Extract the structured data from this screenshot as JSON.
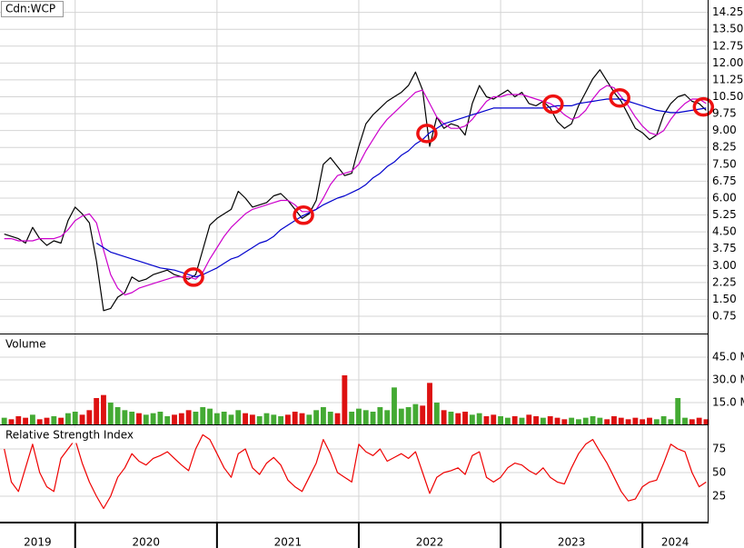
{
  "chart_data": [
    {
      "type": "line",
      "title": "Cdn:WCP",
      "x": [
        2019.5,
        2019.55,
        2019.6,
        2019.65,
        2019.7,
        2019.75,
        2019.8,
        2019.85,
        2019.9,
        2019.95,
        2020,
        2020.05,
        2020.1,
        2020.15,
        2020.2,
        2020.25,
        2020.3,
        2020.35,
        2020.4,
        2020.45,
        2020.5,
        2020.55,
        2020.6,
        2020.65,
        2020.7,
        2020.75,
        2020.8,
        2020.85,
        2020.9,
        2020.95,
        2021,
        2021.05,
        2021.1,
        2021.15,
        2021.2,
        2021.25,
        2021.3,
        2021.35,
        2021.4,
        2021.45,
        2021.5,
        2021.55,
        2021.6,
        2021.65,
        2021.7,
        2021.75,
        2021.8,
        2021.85,
        2021.9,
        2021.95,
        2022,
        2022.05,
        2022.1,
        2022.15,
        2022.2,
        2022.25,
        2022.3,
        2022.35,
        2022.4,
        2022.45,
        2022.5,
        2022.55,
        2022.6,
        2022.65,
        2022.7,
        2022.75,
        2022.8,
        2022.85,
        2022.9,
        2022.95,
        2023,
        2023.05,
        2023.1,
        2023.15,
        2023.2,
        2023.25,
        2023.3,
        2023.35,
        2023.4,
        2023.45,
        2023.5,
        2023.55,
        2023.6,
        2023.65,
        2023.7,
        2023.75,
        2023.8,
        2023.85,
        2023.9,
        2023.95,
        2024,
        2024.05,
        2024.1,
        2024.15,
        2024.2,
        2024.25,
        2024.3,
        2024.35,
        2024.4,
        2024.45
      ],
      "xlim": [
        2019.47,
        2024.46
      ],
      "xticks": [
        2019,
        2020,
        2021,
        2022,
        2023,
        2024
      ],
      "ylim": [
        0,
        14.8
      ],
      "yticks": [
        0.75,
        {
          "value": 1.5,
          "label": "1.50"
        },
        2.25,
        {
          "value": 3,
          "label": "3.00"
        },
        3.75,
        {
          "value": 4.5,
          "label": "4.50"
        },
        5.25,
        {
          "value": 6,
          "label": "6.00"
        },
        6.75,
        {
          "value": 7.5,
          "label": "7.50"
        },
        8.25,
        {
          "value": 9,
          "label": "9.00"
        },
        9.75,
        {
          "value": 10.5,
          "label": "10.50"
        },
        11.25,
        {
          "value": 12,
          "label": "12.00"
        },
        12.75,
        {
          "value": 13.5,
          "label": "13.50"
        },
        14.25
      ],
      "grid": true,
      "series": [
        {
          "color": "#000000",
          "values": [
            4.4,
            4.3,
            4.2,
            4.0,
            4.7,
            4.2,
            3.9,
            4.1,
            4.0,
            5.0,
            5.6,
            5.3,
            4.9,
            3.2,
            1.0,
            1.1,
            1.6,
            1.8,
            2.5,
            2.3,
            2.4,
            2.6,
            2.7,
            2.8,
            2.6,
            2.5,
            2.4,
            2.6,
            3.7,
            4.8,
            5.1,
            5.3,
            5.5,
            6.3,
            6.0,
            5.6,
            5.7,
            5.8,
            6.1,
            6.2,
            5.9,
            5.5,
            5.1,
            5.3,
            5.9,
            7.5,
            7.8,
            7.4,
            7.0,
            7.1,
            8.3,
            9.3,
            9.7,
            10.0,
            10.3,
            10.5,
            10.7,
            11.0,
            11.6,
            10.8,
            8.3,
            9.6,
            9.1,
            9.3,
            9.2,
            8.8,
            10.2,
            11.0,
            10.5,
            10.4,
            10.6,
            10.8,
            10.5,
            10.7,
            10.2,
            10.1,
            10.3,
            10.0,
            9.4,
            9.1,
            9.3,
            10.1,
            10.7,
            11.3,
            11.7,
            11.2,
            10.7,
            10.3,
            9.7,
            9.1,
            8.9,
            8.6,
            8.8,
            9.7,
            10.2,
            10.5,
            10.6,
            10.3,
            10.2,
            9.9
          ]
        },
        {
          "color": "#cc00cc",
          "values": [
            4.2,
            4.2,
            4.1,
            4.1,
            4.1,
            4.2,
            4.2,
            4.2,
            4.3,
            4.6,
            5.0,
            5.2,
            5.3,
            4.9,
            3.7,
            2.6,
            2.0,
            1.7,
            1.8,
            2.0,
            2.1,
            2.2,
            2.3,
            2.4,
            2.5,
            2.5,
            2.5,
            2.4,
            2.7,
            3.3,
            3.8,
            4.3,
            4.7,
            5.0,
            5.3,
            5.5,
            5.6,
            5.7,
            5.8,
            5.9,
            5.9,
            5.7,
            5.4,
            5.4,
            5.5,
            6.0,
            6.6,
            7.0,
            7.1,
            7.2,
            7.5,
            8.1,
            8.6,
            9.1,
            9.5,
            9.8,
            10.1,
            10.4,
            10.7,
            10.8,
            10.2,
            9.6,
            9.3,
            9.1,
            9.1,
            9.2,
            9.5,
            9.9,
            10.3,
            10.5,
            10.5,
            10.6,
            10.6,
            10.6,
            10.5,
            10.4,
            10.3,
            10.2,
            10.0,
            9.7,
            9.5,
            9.6,
            9.9,
            10.4,
            10.8,
            11.0,
            10.9,
            10.5,
            10.1,
            9.6,
            9.2,
            8.9,
            8.8,
            9.0,
            9.5,
            9.9,
            10.2,
            10.4,
            10.4,
            10.2
          ]
        },
        {
          "color": "#0000cc",
          "values": [
            null,
            null,
            null,
            null,
            null,
            null,
            null,
            null,
            null,
            null,
            null,
            null,
            null,
            4.0,
            3.8,
            3.6,
            3.5,
            3.4,
            3.3,
            3.2,
            3.1,
            3.0,
            2.9,
            2.85,
            2.8,
            2.7,
            2.6,
            2.5,
            2.6,
            2.75,
            2.9,
            3.1,
            3.3,
            3.4,
            3.6,
            3.8,
            4.0,
            4.1,
            4.3,
            4.6,
            4.8,
            5.0,
            5.2,
            5.35,
            5.5,
            5.7,
            5.85,
            6.0,
            6.1,
            6.25,
            6.4,
            6.6,
            6.9,
            7.1,
            7.4,
            7.6,
            7.9,
            8.1,
            8.4,
            8.6,
            8.9,
            9.1,
            9.3,
            9.4,
            9.5,
            9.6,
            9.7,
            9.8,
            9.9,
            10.0,
            10.0,
            10.0,
            10.0,
            10.0,
            10.0,
            10.0,
            10.0,
            10.05,
            10.1,
            10.1,
            10.1,
            10.2,
            10.25,
            10.3,
            10.35,
            10.4,
            10.4,
            10.4,
            10.3,
            10.2,
            10.1,
            10.0,
            9.9,
            9.85,
            9.8,
            9.8,
            9.85,
            9.9,
            9.95,
            10.0
          ]
        }
      ],
      "highlights": {
        "color": "#ee1111",
        "x": [
          2020.835,
          2021.61,
          2022.48,
          2023.37,
          2023.84,
          2024.43
        ],
        "y": [
          2.49,
          5.24,
          8.87,
          10.17,
          10.45,
          10.05
        ]
      }
    },
    {
      "type": "bar",
      "title": "Volume",
      "values": [
        5,
        4,
        6,
        5,
        7,
        4,
        5,
        6,
        5,
        8,
        9,
        7,
        10,
        18,
        20,
        15,
        12,
        10,
        9,
        8,
        7,
        8,
        9,
        6,
        7,
        8,
        10,
        9,
        12,
        11,
        8,
        9,
        7,
        10,
        8,
        7,
        6,
        8,
        7,
        6,
        7,
        9,
        8,
        7,
        10,
        12,
        9,
        8,
        33,
        9,
        11,
        10,
        9,
        12,
        10,
        25,
        11,
        12,
        14,
        13,
        28,
        15,
        10,
        9,
        8,
        9,
        7,
        8,
        6,
        7,
        6,
        5,
        6,
        5,
        7,
        6,
        5,
        6,
        5,
        4,
        5,
        4,
        5,
        6,
        5,
        4,
        6,
        5,
        4,
        5,
        4,
        5,
        4,
        6,
        4,
        18,
        5,
        4,
        5,
        4
      ],
      "up_color": "#44aa33",
      "down_color": "#dd1111",
      "ylim": [
        0,
        60
      ],
      "yticks": [
        {
          "value": 15,
          "label": "15.0 M"
        },
        {
          "value": 30,
          "label": "30.0 M"
        },
        {
          "value": 45,
          "label": "45.0 M"
        }
      ],
      "grid": true
    },
    {
      "type": "line",
      "title": "Relative Strength Index",
      "series": [
        {
          "color": "#ee0000",
          "values": [
            75,
            40,
            30,
            55,
            80,
            50,
            35,
            30,
            65,
            75,
            85,
            60,
            40,
            25,
            12,
            25,
            45,
            55,
            70,
            62,
            58,
            65,
            68,
            72,
            65,
            58,
            52,
            75,
            90,
            85,
            70,
            55,
            45,
            70,
            75,
            55,
            48,
            60,
            66,
            58,
            42,
            35,
            30,
            45,
            60,
            85,
            70,
            50,
            45,
            40,
            80,
            72,
            68,
            75,
            62,
            66,
            70,
            65,
            72,
            50,
            28,
            45,
            50,
            52,
            55,
            48,
            68,
            72,
            45,
            40,
            45,
            55,
            60,
            58,
            52,
            48,
            55,
            45,
            40,
            38,
            55,
            70,
            80,
            85,
            72,
            60,
            45,
            30,
            20,
            22,
            35,
            40,
            42,
            60,
            80,
            75,
            72,
            50,
            35,
            40
          ]
        }
      ],
      "ylim": [
        0,
        100
      ],
      "yticks": [
        25,
        50,
        75
      ],
      "grid": true
    }
  ]
}
